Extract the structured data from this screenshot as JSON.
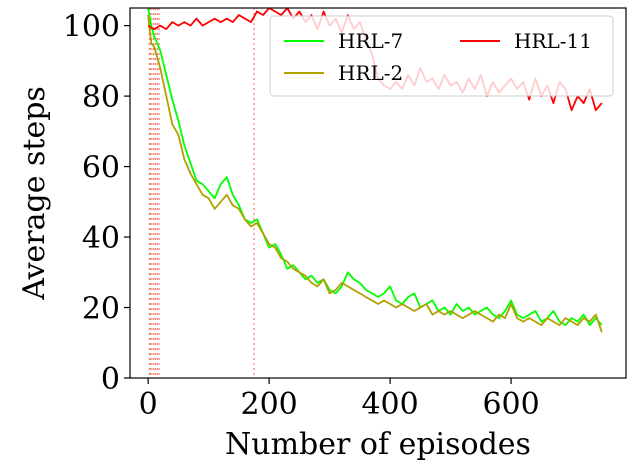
{
  "chart_data": {
    "type": "line",
    "title": "",
    "xlabel": "Number of episodes",
    "ylabel": "Average steps",
    "xlim": [
      -30,
      790
    ],
    "ylim": [
      0,
      105
    ],
    "xticks": [
      0,
      200,
      400,
      600
    ],
    "yticks": [
      0,
      20,
      40,
      60,
      80,
      100
    ],
    "grid": false,
    "legend_placement": "top-right",
    "legend_columns": 2,
    "vlines": [
      {
        "x": 2,
        "color": "#ff8080"
      },
      {
        "x": 4,
        "color": "#ff8080"
      },
      {
        "x": 6,
        "color": "#c8c870"
      },
      {
        "x": 9,
        "color": "#ff8080"
      },
      {
        "x": 12,
        "color": "#ff8080"
      },
      {
        "x": 15,
        "color": "#ff8080"
      },
      {
        "x": 18,
        "color": "#ff8080"
      },
      {
        "x": 175,
        "color": "#ff8080"
      }
    ],
    "series": [
      {
        "name": "HRL-7",
        "color": "#00ff00",
        "x": [
          0,
          5,
          10,
          20,
          30,
          40,
          50,
          60,
          70,
          80,
          90,
          100,
          110,
          120,
          130,
          140,
          150,
          160,
          170,
          180,
          190,
          200,
          210,
          220,
          230,
          240,
          250,
          260,
          270,
          280,
          290,
          300,
          310,
          320,
          330,
          340,
          350,
          360,
          370,
          380,
          390,
          400,
          410,
          420,
          430,
          440,
          450,
          460,
          470,
          480,
          490,
          500,
          510,
          520,
          530,
          540,
          550,
          560,
          570,
          580,
          590,
          600,
          610,
          620,
          630,
          640,
          650,
          660,
          670,
          680,
          690,
          700,
          710,
          720,
          730,
          740,
          750
        ],
        "y": [
          105,
          100,
          97,
          93,
          86,
          79,
          73,
          66,
          61,
          56,
          55,
          53,
          51,
          55,
          57,
          52,
          49,
          45,
          44,
          45,
          41,
          37,
          38,
          35,
          31,
          32,
          30,
          28,
          29,
          27,
          28,
          25,
          24,
          26,
          30,
          28,
          27,
          25,
          24,
          23,
          24,
          26,
          22,
          21,
          23,
          24,
          20,
          21,
          22,
          19,
          20,
          18,
          21,
          19,
          20,
          18,
          19,
          20,
          18,
          17,
          19,
          22,
          18,
          17,
          18,
          19,
          16,
          17,
          19,
          16,
          15,
          17,
          16,
          18,
          15,
          17,
          15
        ]
      },
      {
        "name": "HRL-2",
        "color": "#b0a000",
        "x": [
          0,
          5,
          10,
          20,
          30,
          40,
          50,
          60,
          70,
          80,
          90,
          100,
          110,
          120,
          130,
          140,
          150,
          160,
          170,
          180,
          190,
          200,
          210,
          220,
          230,
          240,
          250,
          260,
          270,
          280,
          290,
          300,
          310,
          320,
          330,
          340,
          350,
          360,
          370,
          380,
          390,
          400,
          410,
          420,
          430,
          440,
          450,
          460,
          470,
          480,
          490,
          500,
          510,
          520,
          530,
          540,
          550,
          560,
          570,
          580,
          590,
          600,
          610,
          620,
          630,
          640,
          650,
          660,
          670,
          680,
          690,
          700,
          710,
          720,
          730,
          740,
          750
        ],
        "y": [
          103,
          95,
          94,
          88,
          80,
          72,
          69,
          62,
          58,
          55,
          52,
          51,
          48,
          50,
          52,
          49,
          48,
          45,
          43,
          44,
          41,
          38,
          37,
          34,
          33,
          31,
          30,
          29,
          27,
          26,
          28,
          24,
          25,
          27,
          26,
          25,
          24,
          23,
          22,
          21,
          22,
          21,
          20,
          21,
          20,
          19,
          20,
          21,
          18,
          19,
          18,
          19,
          18,
          17,
          18,
          19,
          18,
          17,
          16,
          18,
          17,
          21,
          17,
          16,
          17,
          16,
          15,
          17,
          16,
          15,
          17,
          16,
          15,
          17,
          16,
          18,
          13
        ]
      },
      {
        "name": "HRL-11",
        "color": "#ff0000",
        "x": [
          0,
          10,
          20,
          30,
          40,
          50,
          60,
          70,
          80,
          90,
          100,
          110,
          120,
          130,
          140,
          150,
          160,
          170,
          180,
          190,
          200,
          210,
          220,
          230,
          240,
          250,
          260,
          270,
          280,
          290,
          300,
          310,
          320,
          330,
          340,
          350,
          360,
          370,
          380,
          390,
          400,
          410,
          420,
          430,
          440,
          450,
          460,
          470,
          480,
          490,
          500,
          510,
          520,
          530,
          540,
          550,
          560,
          570,
          580,
          590,
          600,
          610,
          620,
          630,
          640,
          650,
          660,
          670,
          680,
          690,
          700,
          710,
          720,
          730,
          740,
          750
        ],
        "y": [
          100,
          99,
          100,
          99,
          101,
          100,
          101,
          100,
          102,
          100,
          101,
          102,
          101,
          102,
          101,
          103,
          102,
          101,
          104,
          103,
          105,
          104,
          103,
          105,
          102,
          104,
          101,
          103,
          99,
          104,
          100,
          102,
          98,
          103,
          99,
          101,
          96,
          92,
          85,
          83,
          82,
          84,
          82,
          86,
          83,
          88,
          84,
          85,
          82,
          86,
          83,
          84,
          81,
          85,
          82,
          86,
          80,
          84,
          81,
          83,
          85,
          82,
          84,
          79,
          85,
          80,
          83,
          78,
          84,
          82,
          76,
          80,
          78,
          82,
          76,
          78
        ]
      }
    ]
  }
}
